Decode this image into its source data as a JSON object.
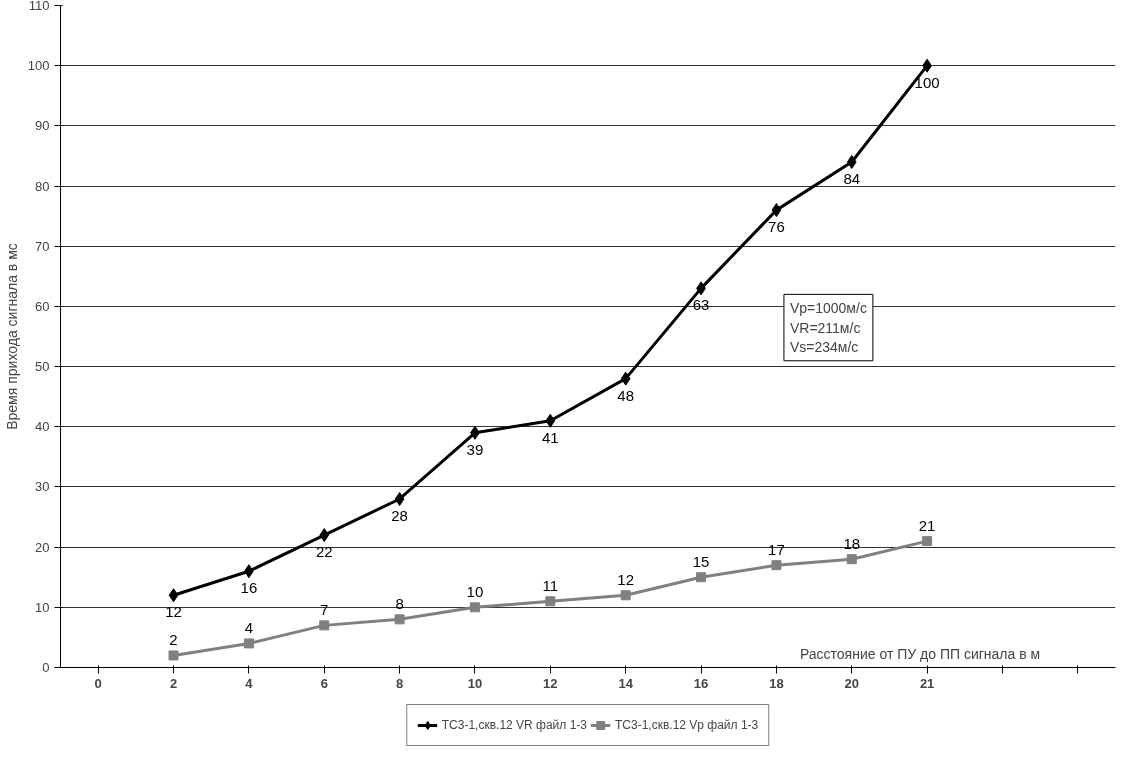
{
  "chart_data": {
    "type": "line",
    "xlabel": "Расстояние от ПУ до ПП сигнала в м",
    "ylabel": "Время прихода сигнала в мс",
    "categories": [
      "0",
      "2",
      "4",
      "6",
      "8",
      "10",
      "12",
      "14",
      "16",
      "18",
      "20",
      "21",
      null,
      null
    ],
    "series": [
      {
        "name": "ТС3-1,скв.12 VR файл 1-3",
        "color": "#000000",
        "marker": "diamond",
        "values": [
          null,
          12,
          16,
          22,
          28,
          39,
          41,
          48,
          63,
          76,
          84,
          100,
          null,
          null
        ]
      },
      {
        "name": "ТС3-1,скв.12 Vp файл 1-3",
        "color": "#808080",
        "marker": "square",
        "values": [
          null,
          2,
          4,
          7,
          8,
          10,
          11,
          12,
          15,
          17,
          18,
          21,
          null,
          null
        ]
      }
    ],
    "ylim": [
      0,
      110
    ],
    "yticks": [
      0,
      10,
      20,
      30,
      40,
      50,
      60,
      70,
      80,
      90,
      100,
      110
    ],
    "grid": "y",
    "legend": "bottom",
    "data_labels": true,
    "line_style": "solid",
    "annotations": [
      "Vp=1000м/с\nVR=211м/с\nVs=234м/с"
    ]
  }
}
